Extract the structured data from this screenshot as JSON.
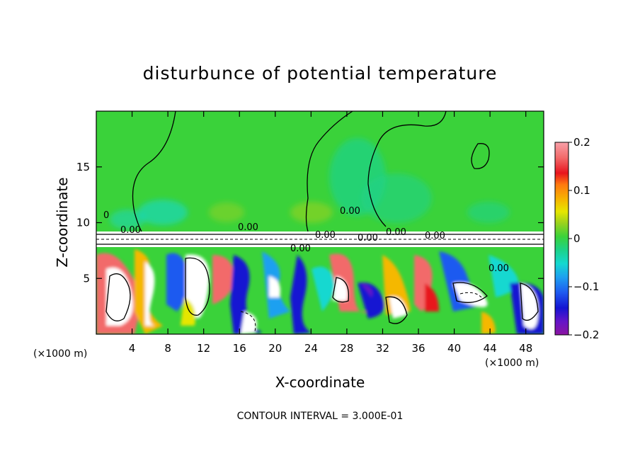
{
  "chart_data": {
    "type": "heatmap",
    "title": "disturbunce of potential temperature",
    "xlabel": "X-coordinate",
    "ylabel": "Z-coordinate",
    "x_unit": "(×1000 m)",
    "z_unit": "(×1000 m)",
    "xlim": [
      0,
      50
    ],
    "ylim": [
      0,
      20
    ],
    "x_ticks": [
      4,
      8,
      12,
      16,
      20,
      24,
      28,
      32,
      36,
      40,
      44,
      48
    ],
    "y_ticks": [
      5,
      10,
      15
    ],
    "colorbar": {
      "min": -0.2,
      "max": 0.2,
      "ticks": [
        0.2,
        0.1,
        0,
        -0.1,
        -0.2
      ],
      "tick_labels": [
        "0.2",
        "0.1",
        "0",
        "−0.1",
        "−0.2"
      ],
      "colors": [
        "#f8a0a8",
        "#f26a6a",
        "#e8141e",
        "#ff7a10",
        "#f5b800",
        "#e6e600",
        "#9ad21e",
        "#3ad23a",
        "#1cd28a",
        "#14d8d0",
        "#1ea0f0",
        "#1e5af0",
        "#1414d2",
        "#6414c8",
        "#8c14a0"
      ]
    },
    "contour_labels": [
      "0.00",
      "0.00",
      "0.00",
      "0.00",
      "0.00",
      "0.00",
      "0.00",
      "0.00",
      "0.00",
      "0"
    ],
    "footer": "CONTOUR INTERVAL = 3.000E-01",
    "regions": {
      "upper_z_range": [
        9.3,
        20
      ],
      "upper_value": 0.0,
      "inversion_layer_z": [
        7.8,
        9.3
      ],
      "turbulent_layer_z": [
        0,
        7.8
      ]
    }
  }
}
